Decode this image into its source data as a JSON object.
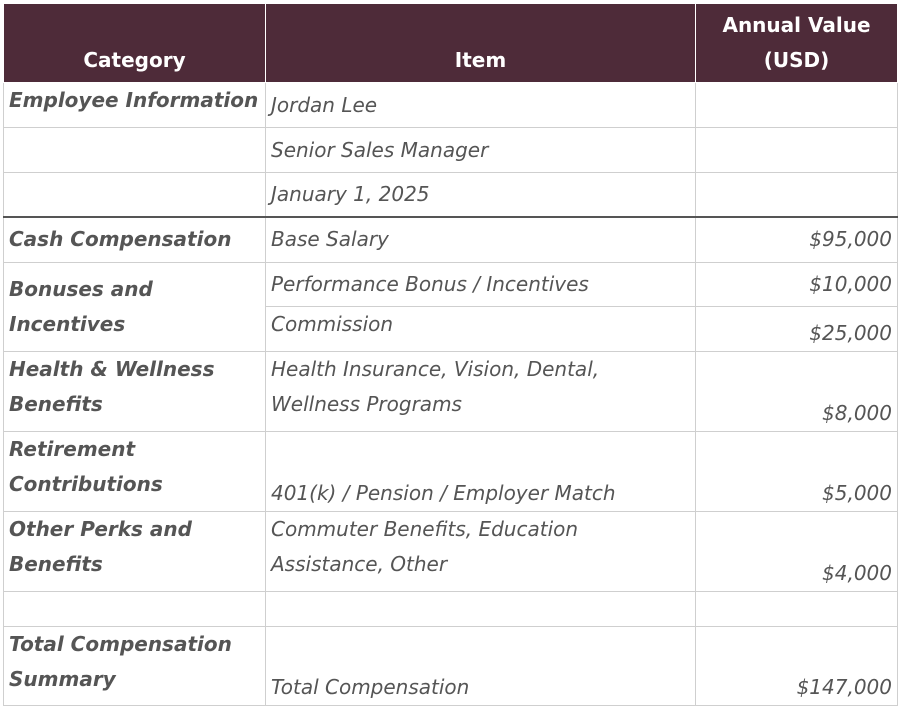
{
  "table": {
    "header": [
      "Category",
      "Item",
      "Annual Value (USD)"
    ],
    "rows": [
      {
        "category": "Employee Information",
        "item": "Jordan Lee"
      },
      {
        "item": "Senior Sales Manager"
      },
      {
        "item": "January 1, 2025"
      },
      {
        "category": "Cash Compensation",
        "item": "Base Salary",
        "value": "$95,000"
      },
      {
        "category": "Bonuses and Incentives",
        "item": "Performance Bonus / Incentives",
        "value": "$10,000"
      },
      {
        "item": "Commission",
        "value": "$25,000"
      },
      {
        "category": "Health & Wellness Benefits",
        "item": "Health Insurance, Vision, Dental, Wellness Programs",
        "value": "$8,000"
      },
      {
        "category": "Retirement Contributions",
        "item": "401(k) / Pension / Employer Match",
        "value": "$5,000"
      },
      {
        "category": "Other Perks and Benefits",
        "item": "Commuter Benefits, Education Assistance, Other",
        "value": "$4,000"
      },
      {},
      {
        "category": "Total Compensation Summary",
        "item": "Total Compensation",
        "value": "$147,000"
      }
    ]
  }
}
